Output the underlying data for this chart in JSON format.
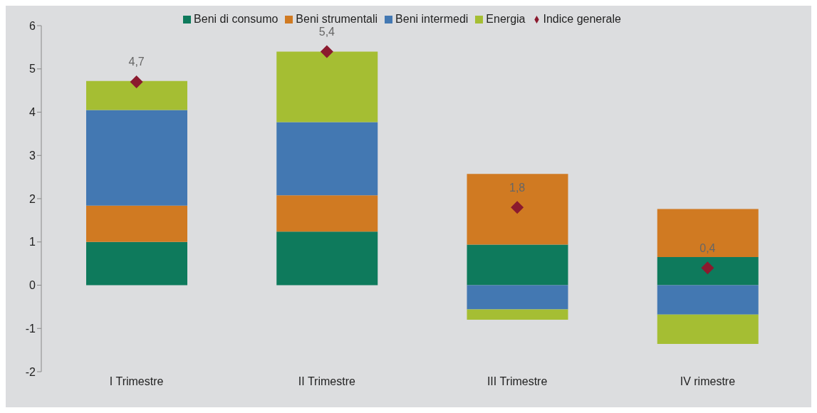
{
  "chart_data": {
    "type": "bar",
    "stacked": true,
    "categories": [
      "I Trimestre",
      "II Trimestre",
      "III Trimestre",
      "IV rimestre"
    ],
    "series": [
      {
        "name": "Beni di consumo",
        "color": "#0e7a5c",
        "values": [
          1.0,
          1.24,
          0.94,
          0.65
        ]
      },
      {
        "name": "Beni strumentali",
        "color": "#d07a22",
        "values": [
          0.84,
          0.84,
          1.63,
          1.11
        ]
      },
      {
        "name": "Beni intermedi",
        "color": "#4378b2",
        "values": [
          2.21,
          1.69,
          -0.56,
          -0.68
        ]
      },
      {
        "name": "Energia",
        "color": "#a5be33",
        "values": [
          0.67,
          1.63,
          -0.24,
          -0.68
        ]
      },
      {
        "name": "Indice generale",
        "type": "scatter",
        "color": "#8b1a2e",
        "marker": "diamond",
        "values": [
          4.7,
          5.4,
          1.8,
          0.4
        ],
        "value_labels": [
          "4,7",
          "5,4",
          "1,8",
          "0,4"
        ]
      }
    ],
    "ylim": [
      -2,
      6
    ],
    "yticks": [
      -2,
      -1,
      0,
      1,
      2,
      3,
      4,
      5,
      6
    ],
    "legend": "top"
  }
}
